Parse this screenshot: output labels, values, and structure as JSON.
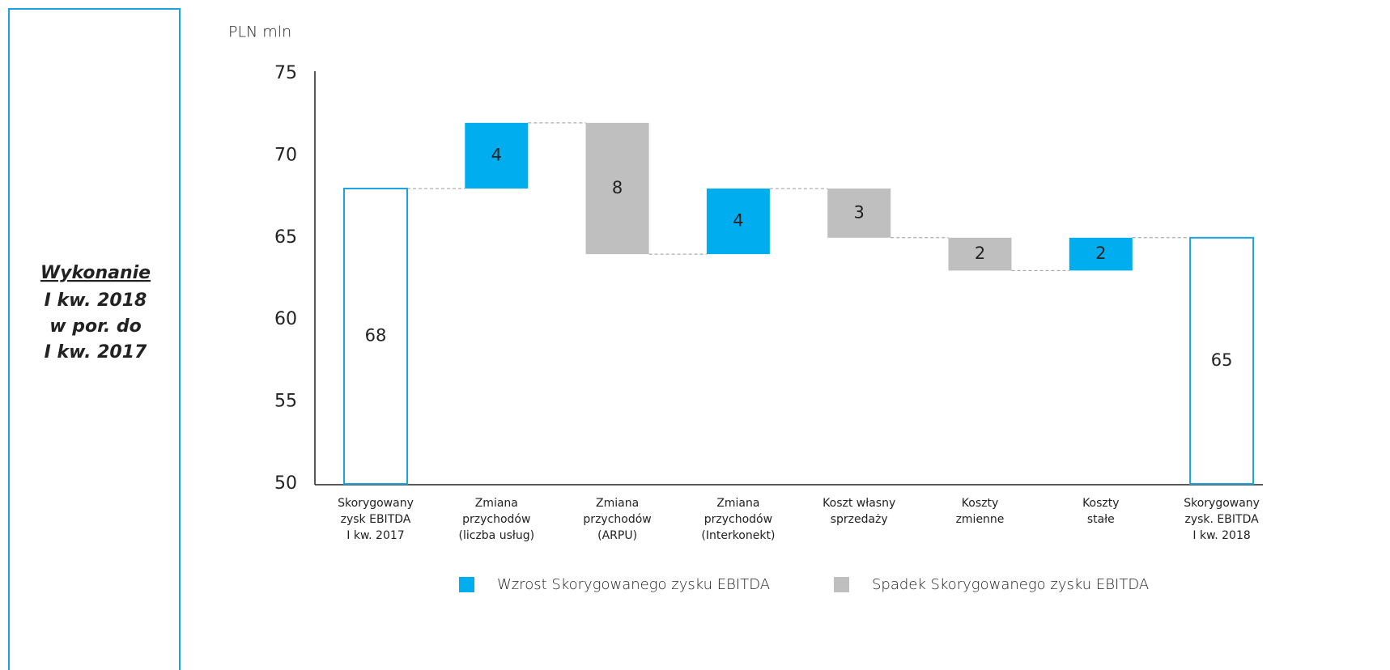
{
  "side_panel": {
    "lines": [
      "Wykonanie",
      "I kw. 2018",
      "w por. do",
      "I kw. 2017"
    ]
  },
  "chart_data": {
    "type": "waterfall",
    "unit_label": "PLN mln",
    "categories": [
      [
        "Skorygowany",
        "zysk EBITDA",
        "I kw. 2017"
      ],
      [
        "Zmiana",
        "przychodów",
        "(liczba usług)"
      ],
      [
        "Zmiana",
        "przychodów",
        "(ARPU)"
      ],
      [
        "Zmiana",
        "przychodów",
        "(Interkonekt)"
      ],
      [
        "Koszt własny",
        "sprzedaży"
      ],
      [
        "Koszty",
        "zmienne"
      ],
      [
        "Koszty",
        "stałe"
      ],
      [
        "Skorygowany",
        "zysk. EBITDA",
        "I kw. 2018"
      ]
    ],
    "values": [
      68,
      4,
      -8,
      4,
      -3,
      -2,
      2,
      65
    ],
    "value_labels": [
      "68",
      "4",
      "8",
      "4",
      "3",
      "2",
      "2",
      "65"
    ],
    "measure": [
      "total",
      "relative",
      "relative",
      "relative",
      "relative",
      "relative",
      "relative",
      "total"
    ],
    "total_color": "#1aa3e0",
    "increase_color": "#00aeef",
    "decrease_color": "#bfbfbf",
    "legend": [
      {
        "name": "Wzrost Skorygowanego zysku EBITDA",
        "color": "#00aeef"
      },
      {
        "name": "Spadek Skorygowanego zysku EBITDA",
        "color": "#bfbfbf"
      }
    ],
    "ylim": [
      50,
      75
    ],
    "yticks": [
      50,
      55,
      60,
      65,
      70,
      75
    ]
  }
}
